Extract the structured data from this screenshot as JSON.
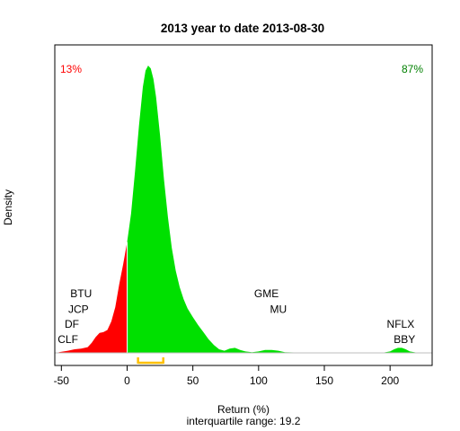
{
  "chart_data": {
    "type": "area",
    "title": "2013  year to date 2013-08-30",
    "xlabel": "Return (%)",
    "subtitle": "interquartile range: 19.2",
    "ylabel": "Density",
    "xlim": [
      -55,
      232
    ],
    "ylim": [
      0,
      0.0405
    ],
    "x_ticks": [
      -50,
      0,
      50,
      100,
      150,
      200
    ],
    "pct_negative": "13%",
    "pct_positive": "87%",
    "split_at": 0,
    "interquartile_range": {
      "q1": 8.3,
      "q3": 27.5,
      "width": 19.2
    },
    "colors": {
      "negative": "#ff0000",
      "positive": "#00e000",
      "pct_negative": "#ff0000",
      "pct_positive": "#008000",
      "iqr": "#ffc000",
      "baseline": "#bebebe"
    },
    "density": [
      [
        -52,
        0.0001
      ],
      [
        -45,
        0.0003
      ],
      [
        -40,
        0.0005
      ],
      [
        -35,
        0.0006
      ],
      [
        -30,
        0.0008
      ],
      [
        -27,
        0.0014
      ],
      [
        -24,
        0.0022
      ],
      [
        -21,
        0.0028
      ],
      [
        -18,
        0.0029
      ],
      [
        -15,
        0.0032
      ],
      [
        -12,
        0.0044
      ],
      [
        -9,
        0.0064
      ],
      [
        -6,
        0.0096
      ],
      [
        -3,
        0.0124
      ],
      [
        0,
        0.0155
      ],
      [
        3,
        0.0195
      ],
      [
        6,
        0.0254
      ],
      [
        9,
        0.0318
      ],
      [
        12,
        0.0372
      ],
      [
        14,
        0.0395
      ],
      [
        16,
        0.0402
      ],
      [
        18,
        0.0398
      ],
      [
        20,
        0.0383
      ],
      [
        22,
        0.0358
      ],
      [
        25,
        0.0305
      ],
      [
        28,
        0.0243
      ],
      [
        31,
        0.019
      ],
      [
        34,
        0.0147
      ],
      [
        37,
        0.0115
      ],
      [
        40,
        0.0092
      ],
      [
        43,
        0.0075
      ],
      [
        46,
        0.0062
      ],
      [
        50,
        0.005
      ],
      [
        54,
        0.0039
      ],
      [
        58,
        0.0029
      ],
      [
        62,
        0.0019
      ],
      [
        66,
        0.0011
      ],
      [
        70,
        0.0005
      ],
      [
        74,
        0.0003
      ],
      [
        78,
        0.0006
      ],
      [
        82,
        0.0007
      ],
      [
        86,
        0.0004
      ],
      [
        90,
        0.0002
      ],
      [
        95,
        0.0001
      ],
      [
        100,
        0.0002
      ],
      [
        105,
        0.0004
      ],
      [
        110,
        0.0004
      ],
      [
        115,
        0.0003
      ],
      [
        120,
        0.0001
      ],
      [
        130,
        5e-05
      ],
      [
        150,
        3e-05
      ],
      [
        180,
        3e-05
      ],
      [
        195,
        5e-05
      ],
      [
        200,
        0.0002
      ],
      [
        203,
        0.0005
      ],
      [
        206,
        0.0007
      ],
      [
        209,
        0.0007
      ],
      [
        212,
        0.0005
      ],
      [
        215,
        0.0002
      ],
      [
        220,
        5e-05
      ]
    ],
    "stock_labels": [
      {
        "text": "BTU",
        "x": -35,
        "y": 0.0083
      },
      {
        "text": "JCP",
        "x": -37,
        "y": 0.0061
      },
      {
        "text": "DF",
        "x": -42,
        "y": 0.004
      },
      {
        "text": "CLF",
        "x": -45,
        "y": 0.0019
      },
      {
        "text": "GME",
        "x": 106,
        "y": 0.0083
      },
      {
        "text": "MU",
        "x": 115,
        "y": 0.0061
      },
      {
        "text": "NFLX",
        "x": 208,
        "y": 0.004
      },
      {
        "text": "BBY",
        "x": 211,
        "y": 0.0019
      }
    ]
  }
}
